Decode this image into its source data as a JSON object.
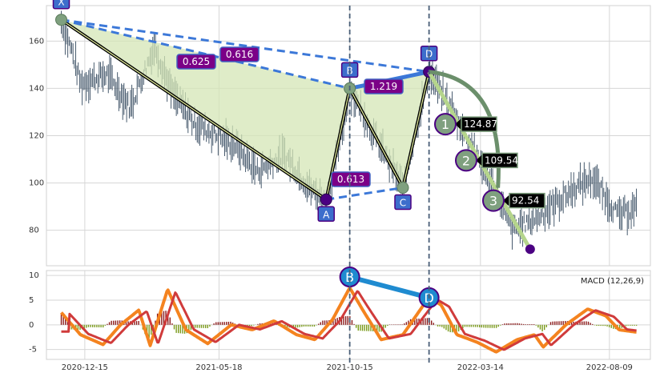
{
  "chart_data": [
    {
      "type": "candlestick",
      "panel": "price",
      "ylim": [
        65,
        175
      ],
      "y_ticks": [
        80,
        100,
        120,
        140,
        160
      ],
      "x_ticks": [
        "2020-12-15",
        "2021-05-18",
        "2021-10-15",
        "2022-03-14",
        "2022-08-09"
      ],
      "grid": true,
      "vertical_dashed_markers": [
        "2021-10-15",
        "2022-01-14"
      ],
      "price_path": [
        [
          "2020-11-18",
          168
        ],
        [
          "2020-12-01",
          155
        ],
        [
          "2020-12-10",
          142
        ],
        [
          "2021-01-10",
          146
        ],
        [
          "2021-02-05",
          132
        ],
        [
          "2021-03-05",
          158
        ],
        [
          "2021-03-25",
          138
        ],
        [
          "2021-04-20",
          125
        ],
        [
          "2021-06-05",
          116
        ],
        [
          "2021-07-01",
          105
        ],
        [
          "2021-08-01",
          112
        ],
        [
          "2021-09-01",
          97
        ],
        [
          "2021-09-18",
          93
        ],
        [
          "2021-10-01",
          112
        ],
        [
          "2021-10-15",
          140
        ],
        [
          "2021-11-15",
          118
        ],
        [
          "2021-12-15",
          98
        ],
        [
          "2022-01-14",
          147
        ],
        [
          "2022-02-01",
          136
        ],
        [
          "2022-03-01",
          118
        ],
        [
          "2022-04-01",
          95
        ],
        [
          "2022-04-20",
          80
        ],
        [
          "2022-05-20",
          86
        ],
        [
          "2022-07-01",
          98
        ],
        [
          "2022-07-20",
          102
        ],
        [
          "2022-08-20",
          86
        ],
        [
          "2022-09-10",
          90
        ]
      ],
      "harmonic_pattern": {
        "points": [
          {
            "label": "X",
            "date": "2020-11-18",
            "value": 169
          },
          {
            "label": "A",
            "date": "2021-09-18",
            "value": 93
          },
          {
            "label": "B",
            "date": "2021-10-15",
            "value": 140
          },
          {
            "label": "C",
            "date": "2021-12-15",
            "value": 98
          },
          {
            "label": "D",
            "date": "2022-01-14",
            "value": 147
          }
        ],
        "ratios": [
          {
            "from": "X",
            "to": "B",
            "value": "0.616"
          },
          {
            "from": "X",
            "to": "D",
            "value": "0.625"
          },
          {
            "from": "B",
            "to": "D",
            "value": "1.219"
          },
          {
            "from": "A",
            "to": "C",
            "value": "0.613"
          }
        ],
        "targets": [
          {
            "label": "1",
            "value": 124.87,
            "text": "124.87"
          },
          {
            "label": "2",
            "value": 109.54,
            "text": "109.54"
          },
          {
            "label": "3",
            "value": 92.54,
            "text": "92.54"
          }
        ],
        "target_path_end": {
          "date": "2022-05-10",
          "value": 72
        }
      }
    },
    {
      "type": "bar+line",
      "panel": "macd",
      "title": "MACD (12,26,9)",
      "ylim": [
        -7,
        11
      ],
      "y_ticks": [
        -5,
        0,
        5,
        10
      ],
      "grid": true,
      "x_ticks": [
        "2020-12-15",
        "2021-05-18",
        "2021-10-15",
        "2022-03-14",
        "2022-08-09"
      ],
      "divergence": [
        {
          "label": "B",
          "date": "2021-10-15",
          "value": 9.7
        },
        {
          "label": "D",
          "date": "2022-01-14",
          "value": 5.5
        }
      ],
      "macd_keypoints": [
        [
          "2020-11-18",
          2.5
        ],
        [
          "2020-12-10",
          -2
        ],
        [
          "2021-01-05",
          -4
        ],
        [
          "2021-01-25",
          0
        ],
        [
          "2021-02-15",
          3
        ],
        [
          "2021-02-28",
          -4.2
        ],
        [
          "2021-03-20",
          7.2
        ],
        [
          "2021-04-10",
          -1
        ],
        [
          "2021-05-05",
          -3.8
        ],
        [
          "2021-06-01",
          0
        ],
        [
          "2021-06-25",
          -1
        ],
        [
          "2021-07-20",
          0.8
        ],
        [
          "2021-08-15",
          -2
        ],
        [
          "2021-09-05",
          -3
        ],
        [
          "2021-09-25",
          1
        ],
        [
          "2021-10-15",
          7.5
        ],
        [
          "2021-10-30",
          3
        ],
        [
          "2021-11-20",
          -3
        ],
        [
          "2021-12-15",
          -2
        ],
        [
          "2022-01-14",
          5.6
        ],
        [
          "2022-01-28",
          4
        ],
        [
          "2022-02-15",
          -2
        ],
        [
          "2022-03-10",
          -3.5
        ],
        [
          "2022-04-01",
          -5.5
        ],
        [
          "2022-04-25",
          -3
        ],
        [
          "2022-05-15",
          -2
        ],
        [
          "2022-05-25",
          -4.5
        ],
        [
          "2022-06-20",
          0
        ],
        [
          "2022-07-15",
          3.2
        ],
        [
          "2022-08-05",
          1.8
        ],
        [
          "2022-08-20",
          -1
        ],
        [
          "2022-09-10",
          -1.5
        ]
      ],
      "colors": {
        "macd": "#f4831f",
        "signal": "#d03b3b",
        "hist_positive": "#8b1a1a",
        "hist_negative": "#7a9a1a"
      }
    }
  ],
  "colors": {
    "pattern_fill": "#d4e6b5",
    "pattern_edge": "#3a3a3a",
    "xb_dashed": "#3c78d8",
    "point_fill": "#4b0082",
    "node_fill": "#7fa07f",
    "label_box": "#3c6ecc",
    "ratio_box": "#7b0087",
    "target_box": "#000000",
    "target_circle": "#7fa07f",
    "target_line": "#b5d58c",
    "arc": "#6b8f6b",
    "marker_line": "#4a5f78",
    "divergence_line": "#1f8bd0",
    "divergence_circle": "#1f8bd0"
  }
}
